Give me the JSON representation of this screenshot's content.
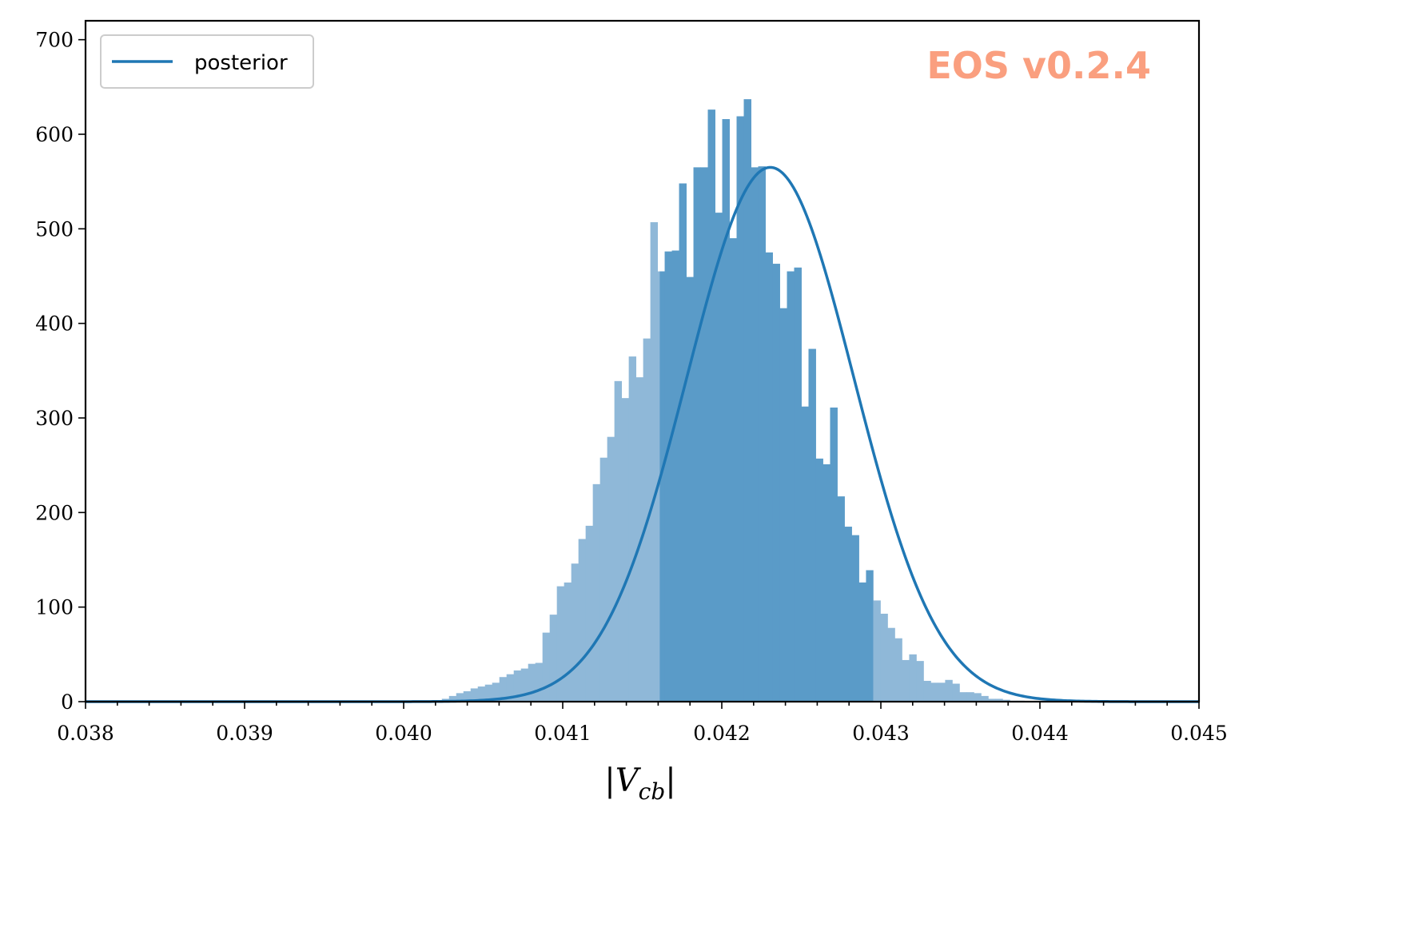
{
  "chart_data": {
    "type": "bar",
    "xlim": [
      0.038,
      0.045
    ],
    "ylim": [
      0,
      720
    ],
    "x_ticks": [
      "0.038",
      "0.039",
      "0.040",
      "0.041",
      "0.042",
      "0.043",
      "0.044",
      "0.045"
    ],
    "y_ticks": [
      "0",
      "100",
      "200",
      "300",
      "400",
      "500",
      "600",
      "700"
    ],
    "xlabel": "|V",
    "xlabel_sub": "cb",
    "xlabel_close": "|",
    "legend": {
      "label": "posterior",
      "position": "upper-left"
    },
    "watermark": {
      "text": "EOS v0.2.4",
      "color": "#fa9f7f",
      "position": "top-right"
    },
    "colors": {
      "hist": "#8fb8d8",
      "band": "#5a9bc8",
      "line": "#1f77b4"
    },
    "band": [
      0.04161,
      0.04295
    ],
    "histogram": {
      "bin_start": 0.04024,
      "bin_width": 4.52e-05,
      "counts": [
        3,
        6,
        9,
        11,
        14,
        16,
        18,
        20,
        26,
        29,
        33,
        35,
        40,
        41,
        73,
        92,
        122,
        126,
        146,
        172,
        186,
        230,
        258,
        280,
        339,
        321,
        365,
        343,
        384,
        507,
        455,
        476,
        477,
        548,
        449,
        565,
        565,
        626,
        517,
        616,
        490,
        619,
        637,
        565,
        566,
        475,
        463,
        416,
        455,
        459,
        312,
        373,
        257,
        251,
        311,
        217,
        185,
        176,
        126,
        139,
        107,
        93,
        78,
        67,
        44,
        50,
        43,
        22,
        20,
        20,
        23,
        19,
        10,
        10,
        9,
        6,
        3,
        3,
        2,
        1,
        1
      ]
    },
    "series": [
      {
        "name": "posterior",
        "type": "gaussian",
        "mean": 0.042305,
        "sigma": 0.000525,
        "peak": 565
      }
    ]
  }
}
